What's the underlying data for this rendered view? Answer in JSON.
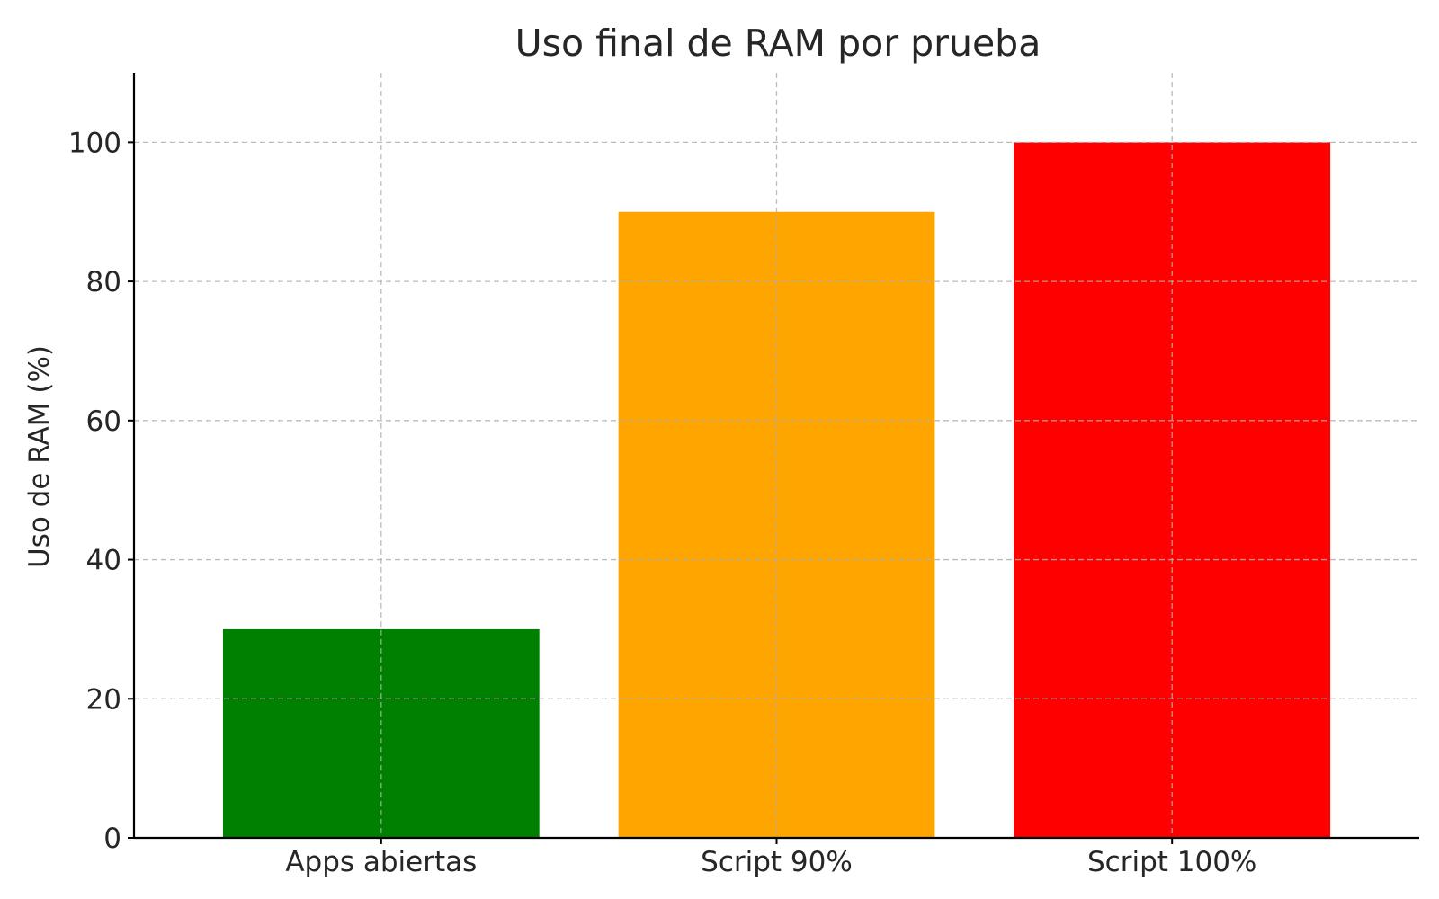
{
  "chart_data": {
    "type": "bar",
    "title": "Uso final de RAM por prueba",
    "xlabel": "",
    "ylabel": "Uso de RAM (%)",
    "categories": [
      "Apps abiertas",
      "Script 90%",
      "Script 100%"
    ],
    "values": [
      30,
      90,
      100
    ],
    "colors": [
      "#008000",
      "#ffa500",
      "#ff0000"
    ],
    "ylim": [
      0,
      110
    ],
    "yticks": [
      0,
      20,
      40,
      60,
      80,
      100
    ],
    "grid": true,
    "legend": "none"
  }
}
